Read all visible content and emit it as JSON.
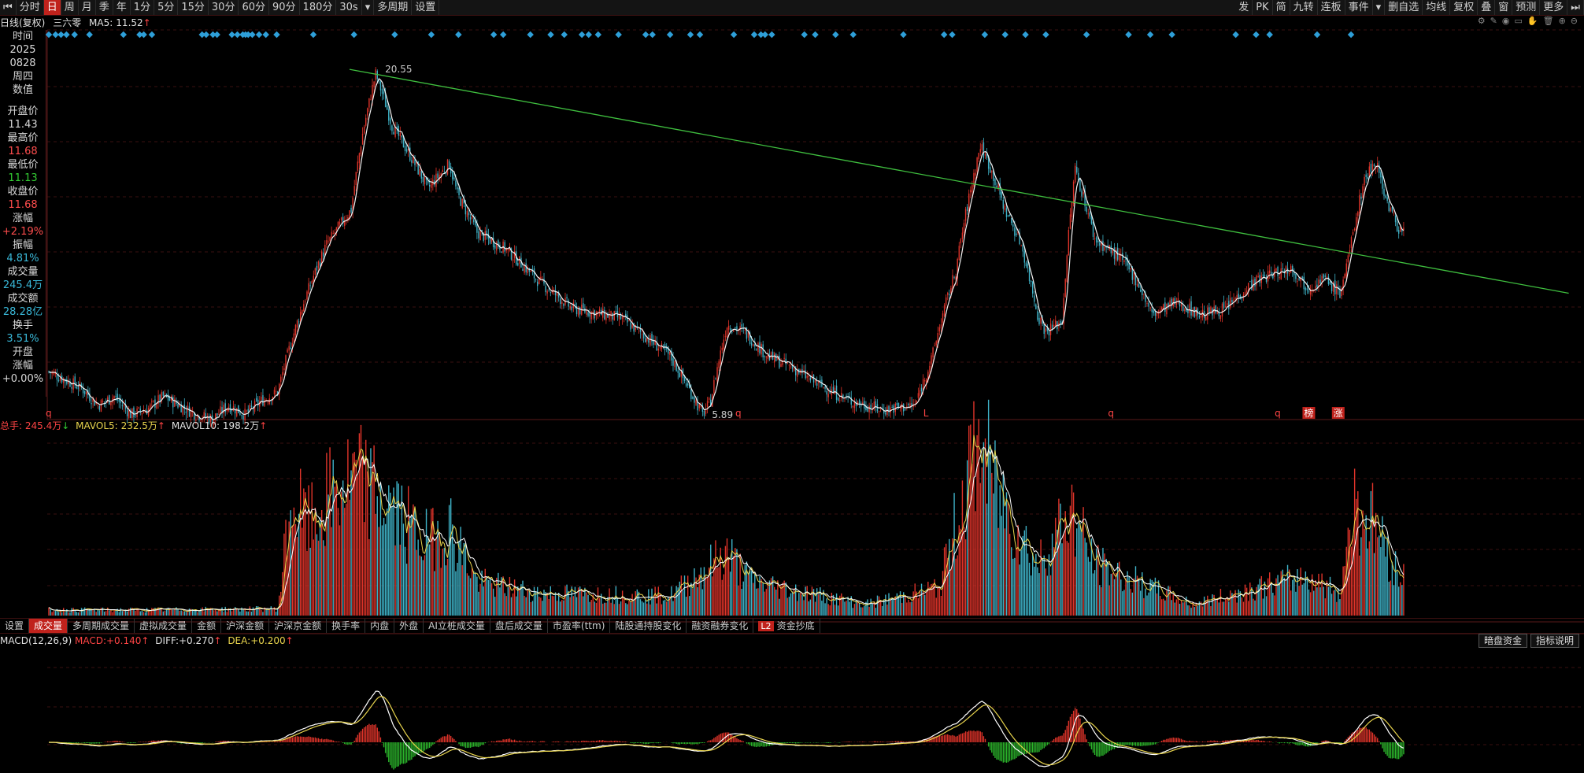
{
  "toolbar": {
    "periods": [
      {
        "label": "分时",
        "active": false
      },
      {
        "label": "日",
        "active": true
      },
      {
        "label": "周",
        "active": false
      },
      {
        "label": "月",
        "active": false
      },
      {
        "label": "季",
        "active": false
      },
      {
        "label": "年",
        "active": false
      },
      {
        "label": "1分",
        "active": false
      },
      {
        "label": "5分",
        "active": false
      },
      {
        "label": "15分",
        "active": false
      },
      {
        "label": "30分",
        "active": false
      },
      {
        "label": "60分",
        "active": false
      },
      {
        "label": "90分",
        "active": false
      },
      {
        "label": "180分",
        "active": false
      },
      {
        "label": "30s",
        "active": false
      },
      {
        "label": "▾",
        "active": false
      },
      {
        "label": "多周期",
        "active": false
      },
      {
        "label": "设置",
        "active": false
      }
    ],
    "right_items": [
      "发",
      "PK",
      "简",
      "九转",
      "连板",
      "事件",
      "▾",
      "删自选",
      "均线",
      "复权",
      "叠",
      "窗",
      "预测",
      "更多"
    ]
  },
  "chart_header": {
    "mode": "日线(复权)",
    "stock": "三六零",
    "ma_label": "MA5:",
    "ma_value": "11.52",
    "ma_arrow": "↑"
  },
  "info_panel": {
    "time_label": "时间",
    "year": "2025",
    "date": "0828",
    "weekday": "周四",
    "value_label": "数值",
    "open_label": "开盘价",
    "open": "11.43",
    "high_label": "最高价",
    "high": "11.68",
    "low_label": "最低价",
    "low": "11.13",
    "close_label": "收盘价",
    "close": "11.68",
    "chg_label": "涨幅",
    "chg": "+2.19%",
    "amp_label": "振幅",
    "amp": "4.81%",
    "vol_label": "成交量",
    "vol": "245.4万",
    "amt_label": "成交额",
    "amt": "28.28亿",
    "turn_label": "换手",
    "turn": "3.51%",
    "open_chg_label1": "开盘",
    "open_chg_label2": "涨幅",
    "open_chg": "+0.00%"
  },
  "price_annotations": {
    "high_mark": "20.55",
    "low_mark": "5.89",
    "event_markers": [
      "q",
      "q",
      "L",
      "q",
      "q",
      "榜",
      "涨"
    ]
  },
  "volume_header": {
    "total_label": "总手:",
    "total": "245.4万",
    "total_arrow": "↓",
    "ma5_label": "MAVOL5:",
    "ma5": "232.5万",
    "ma5_arrow": "↑",
    "ma10_label": "MAVOL10:",
    "ma10": "198.2万",
    "ma10_arrow": "↑"
  },
  "indicator_tabs": [
    "设置",
    "成交量",
    "多周期成交量",
    "虚拟成交量",
    "金额",
    "沪深金额",
    "沪深京金额",
    "换手率",
    "内盘",
    "外盘",
    "AI立桩成交量",
    "盘后成交量",
    "市盈率(ttm)",
    "陆股通持股变化",
    "融资融券变化",
    "资金抄底"
  ],
  "indicator_active": "成交量",
  "l2_badge": "L2",
  "macd_header": {
    "name": "MACD(12,26,9)",
    "macd_label": "MACD:",
    "macd": "+0.140",
    "macd_arrow": "↑",
    "diff_label": "DIFF:",
    "diff": "+0.270",
    "diff_arrow": "↑",
    "dea_label": "DEA:",
    "dea": "+0.200",
    "dea_arrow": "↑"
  },
  "macd_buttons": [
    "暗盘资金",
    "指标说明"
  ],
  "colors": {
    "up": "#e0342a",
    "down": "#3fb3c8",
    "ma": "#f2f2f2",
    "trend": "#3fbf3f",
    "diff": "#ffffff",
    "dea": "#e8d44d",
    "macd_up": "#e0342a",
    "macd_down": "#2bb52b",
    "marker": "#2e9fd8"
  },
  "chart_data": {
    "type": "candlestick",
    "price_keypoints": [
      [
        0,
        6.9
      ],
      [
        10,
        6.7
      ],
      [
        20,
        6.5
      ],
      [
        30,
        6.1
      ],
      [
        40,
        6.3
      ],
      [
        50,
        5.9
      ],
      [
        60,
        6.0
      ],
      [
        70,
        6.3
      ],
      [
        80,
        6.1
      ],
      [
        90,
        5.9
      ],
      [
        100,
        5.8
      ],
      [
        110,
        6.1
      ],
      [
        120,
        5.9
      ],
      [
        130,
        6.2
      ],
      [
        140,
        6.4
      ],
      [
        160,
        9.5
      ],
      [
        170,
        11.0
      ],
      [
        185,
        12.5
      ],
      [
        192,
        16.5
      ],
      [
        200,
        20.55
      ],
      [
        210,
        17.0
      ],
      [
        220,
        15.4
      ],
      [
        232,
        13.5
      ],
      [
        245,
        14.8
      ],
      [
        250,
        13.2
      ],
      [
        262,
        11.5
      ],
      [
        280,
        10.8
      ],
      [
        300,
        9.6
      ],
      [
        320,
        8.7
      ],
      [
        350,
        8.4
      ],
      [
        380,
        7.3
      ],
      [
        400,
        5.89
      ],
      [
        405,
        6.2
      ],
      [
        415,
        8.2
      ],
      [
        425,
        8.0
      ],
      [
        440,
        7.3
      ],
      [
        455,
        7.0
      ],
      [
        470,
        6.6
      ],
      [
        490,
        6.2
      ],
      [
        510,
        6.0
      ],
      [
        530,
        6.1
      ],
      [
        540,
        7.2
      ],
      [
        555,
        10.0
      ],
      [
        565,
        13.8
      ],
      [
        570,
        15.8
      ],
      [
        575,
        14.8
      ],
      [
        585,
        12.5
      ],
      [
        595,
        11.0
      ],
      [
        605,
        8.5
      ],
      [
        610,
        8.0
      ],
      [
        620,
        8.3
      ],
      [
        628,
        14.5
      ],
      [
        640,
        11.2
      ],
      [
        655,
        10.5
      ],
      [
        665,
        9.7
      ],
      [
        675,
        8.5
      ],
      [
        690,
        8.9
      ],
      [
        705,
        8.5
      ],
      [
        720,
        8.7
      ],
      [
        735,
        9.5
      ],
      [
        745,
        9.8
      ],
      [
        760,
        10.1
      ],
      [
        770,
        9.4
      ],
      [
        780,
        9.7
      ],
      [
        790,
        9.2
      ],
      [
        795,
        10.4
      ],
      [
        805,
        14.0
      ],
      [
        812,
        15.0
      ],
      [
        818,
        13.0
      ],
      [
        826,
        11.6
      ]
    ],
    "ma5_value": 11.52,
    "trendline": {
      "from": [
        184,
        20.9
      ],
      "to": [
        930,
        9.2
      ]
    },
    "volume_keypoints": [
      [
        0,
        0.1
      ],
      [
        60,
        0.1
      ],
      [
        140,
        0.12
      ],
      [
        148,
        2.0
      ],
      [
        160,
        1.6
      ],
      [
        175,
        2.2
      ],
      [
        190,
        2.4
      ],
      [
        210,
        1.9
      ],
      [
        230,
        1.3
      ],
      [
        245,
        1.6
      ],
      [
        262,
        0.6
      ],
      [
        300,
        0.4
      ],
      [
        380,
        0.35
      ],
      [
        405,
        0.9
      ],
      [
        415,
        1.1
      ],
      [
        430,
        0.6
      ],
      [
        500,
        0.2
      ],
      [
        545,
        0.5
      ],
      [
        560,
        2.2
      ],
      [
        570,
        3.1
      ],
      [
        580,
        2.2
      ],
      [
        605,
        0.9
      ],
      [
        625,
        1.9
      ],
      [
        640,
        0.9
      ],
      [
        700,
        0.2
      ],
      [
        740,
        0.5
      ],
      [
        770,
        0.7
      ],
      [
        790,
        0.4
      ],
      [
        798,
        2.0
      ],
      [
        812,
        1.6
      ],
      [
        826,
        0.7
      ]
    ],
    "volume_unit": "万手"
  }
}
